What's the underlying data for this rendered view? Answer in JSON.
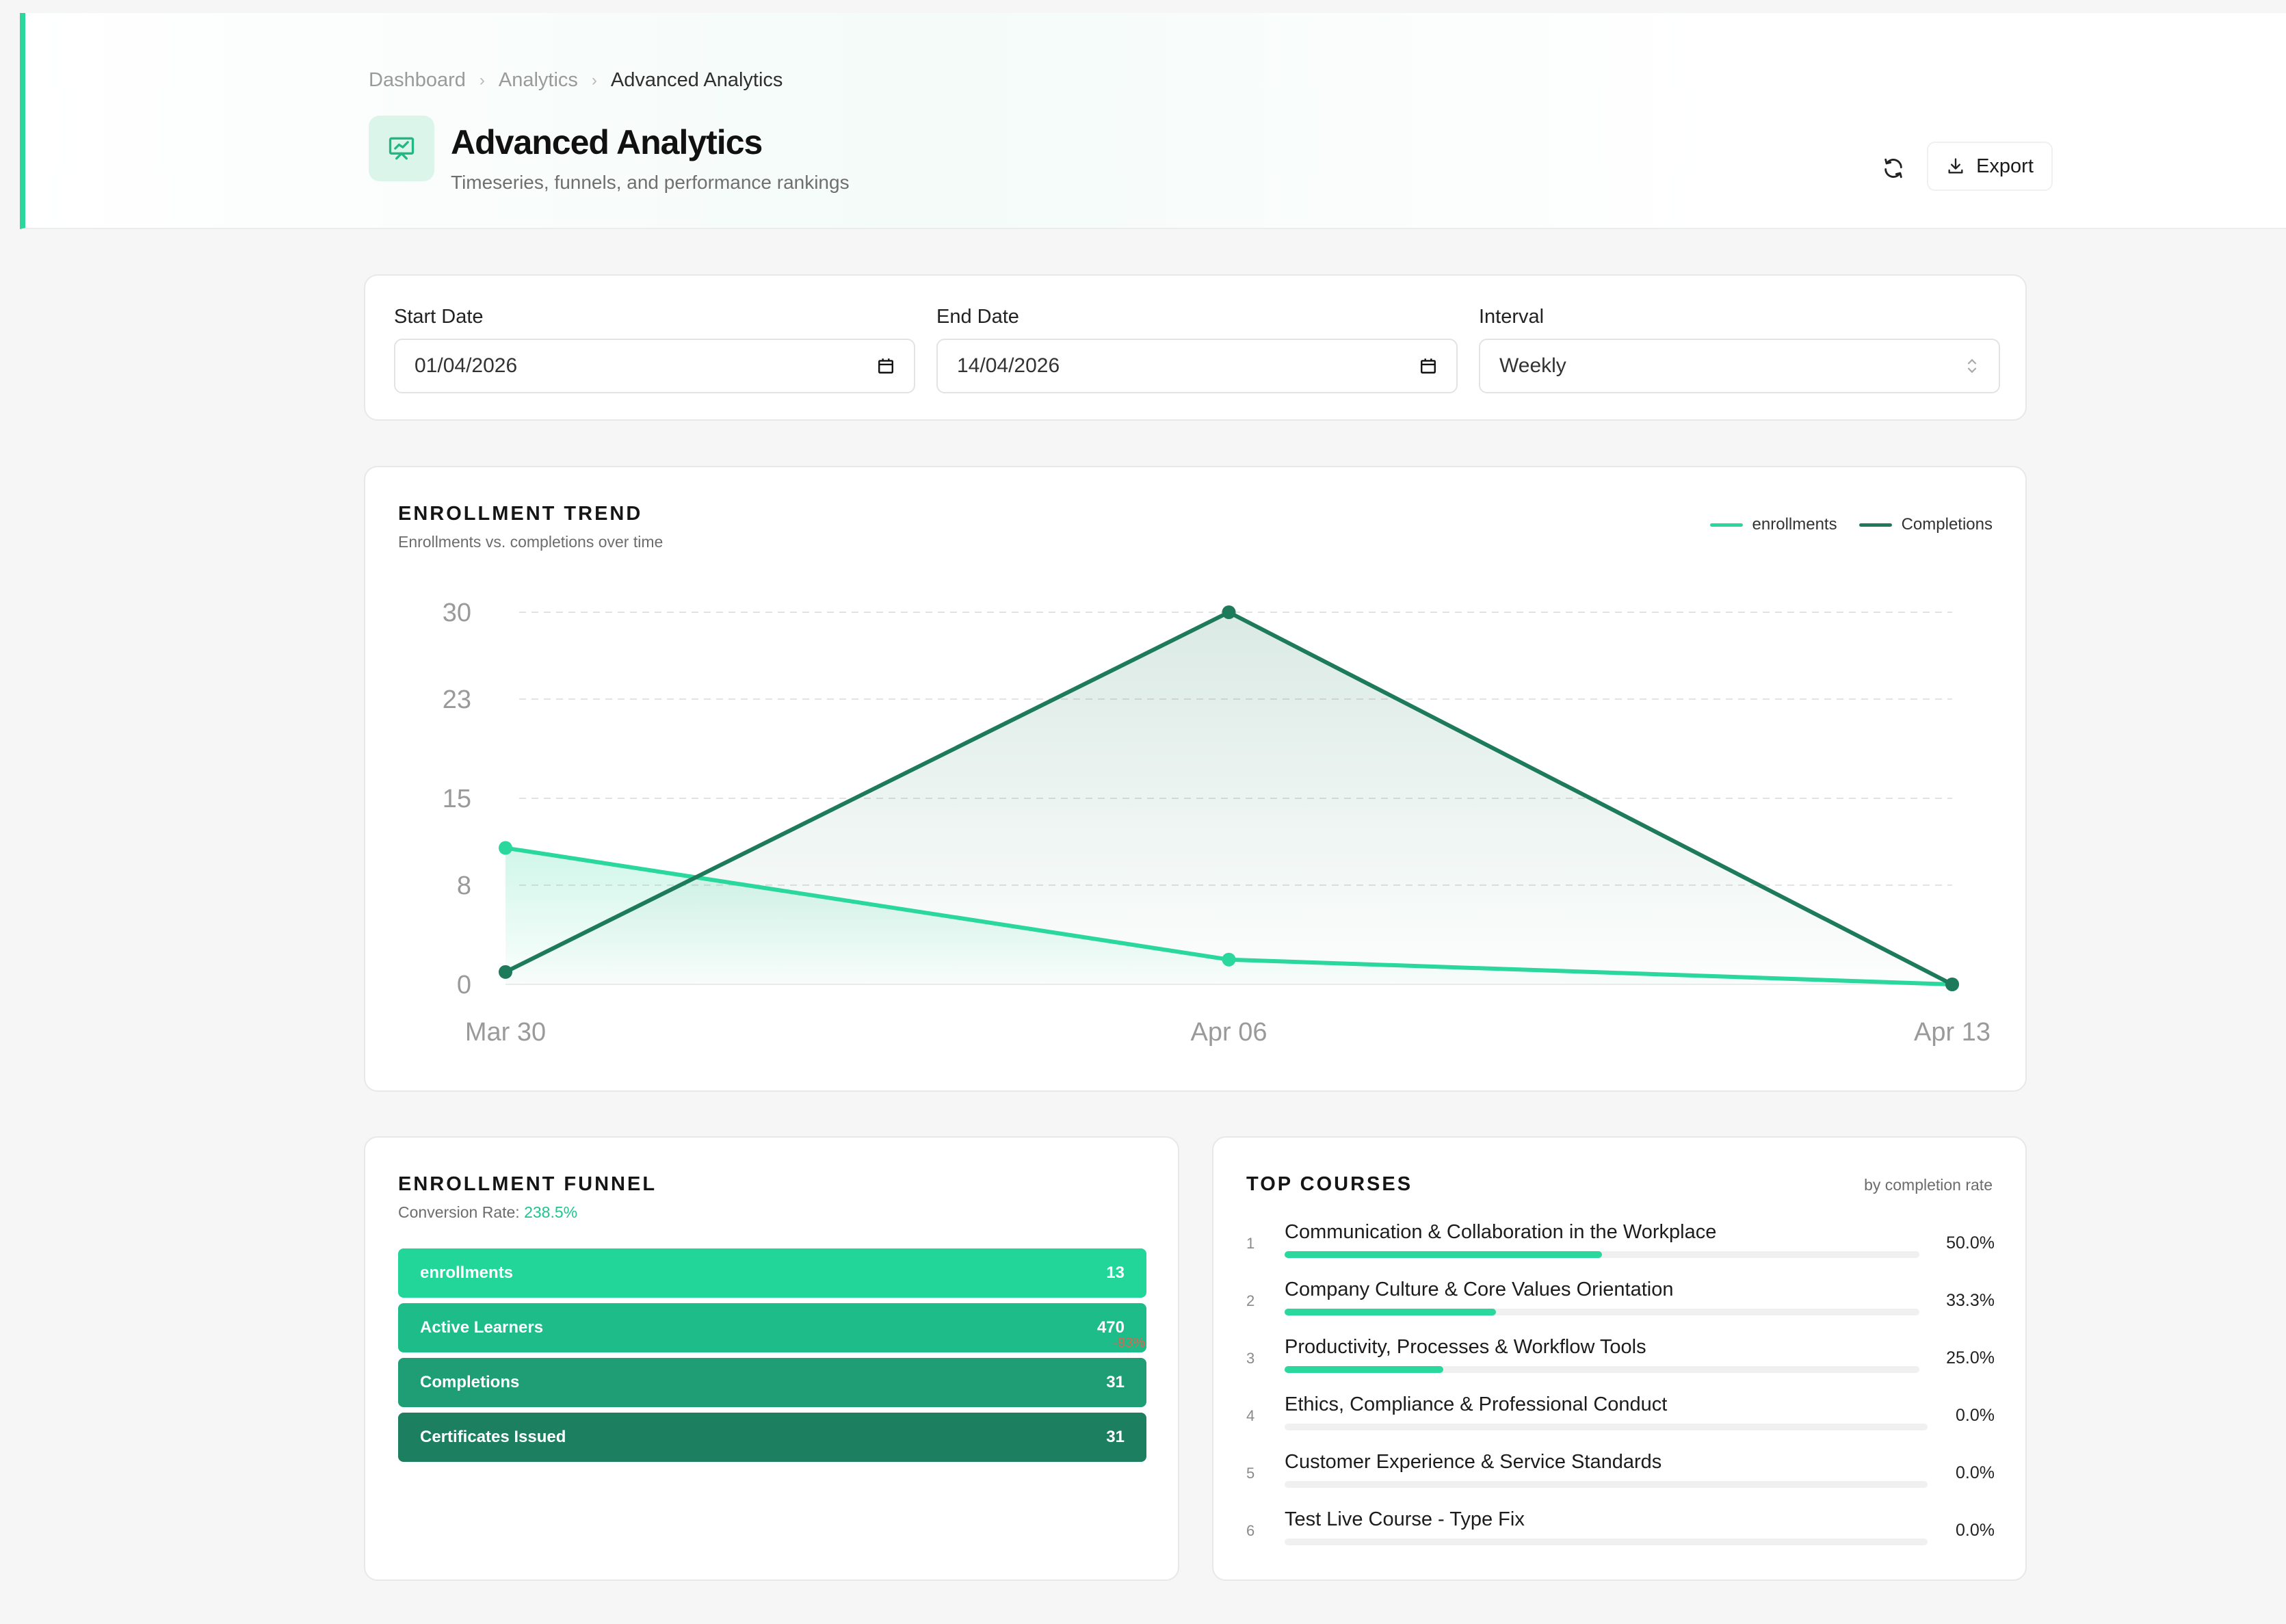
{
  "breadcrumb": {
    "items": [
      "Dashboard",
      "Analytics"
    ],
    "current": "Advanced Analytics"
  },
  "header": {
    "title": "Advanced Analytics",
    "subtitle": "Timeseries, funnels, and performance rankings",
    "export_label": "Export"
  },
  "filters": {
    "start_label": "Start Date",
    "start_value": "01/04/2026",
    "end_label": "End Date",
    "end_value": "14/04/2026",
    "interval_label": "Interval",
    "interval_value": "Weekly"
  },
  "trend": {
    "title": "ENROLLMENT TREND",
    "subtitle": "Enrollments vs. completions over time",
    "legend": [
      "enrollments",
      "Completions"
    ]
  },
  "chart_data": {
    "type": "area",
    "categories": [
      "Mar 30",
      "Apr 06",
      "Apr 13"
    ],
    "series": [
      {
        "name": "enrollments",
        "values": [
          11,
          2,
          0
        ],
        "color": "#2ad79c"
      },
      {
        "name": "Completions",
        "values": [
          1,
          30,
          0
        ],
        "color": "#1d7a5a"
      }
    ],
    "yticks": [
      "30",
      "23",
      "15",
      "8",
      "0"
    ],
    "ylim": [
      0,
      30
    ],
    "grid": true,
    "legend_position": "top-right"
  },
  "funnel": {
    "title": "ENROLLMENT FUNNEL",
    "conversion_label": "Conversion Rate:",
    "conversion_value": "238.5%",
    "drop_note": "-93%",
    "stages": [
      {
        "label": "enrollments",
        "value": "13",
        "color": "#22d699"
      },
      {
        "label": "Active Learners",
        "value": "470",
        "color": "#1ebc88"
      },
      {
        "label": "Completions",
        "value": "31",
        "color": "#1f9e75"
      },
      {
        "label": "Certificates Issued",
        "value": "31",
        "color": "#1b7f60"
      }
    ]
  },
  "top_courses": {
    "title": "TOP COURSES",
    "subtitle": "by completion rate",
    "items": [
      {
        "rank": "1",
        "name": "Communication & Collaboration in the Workplace",
        "pct": "50.0%",
        "rate": 0.5
      },
      {
        "rank": "2",
        "name": "Company Culture & Core Values Orientation",
        "pct": "33.3%",
        "rate": 0.333
      },
      {
        "rank": "3",
        "name": "Productivity, Processes & Workflow Tools",
        "pct": "25.0%",
        "rate": 0.25
      },
      {
        "rank": "4",
        "name": "Ethics, Compliance & Professional Conduct",
        "pct": "0.0%",
        "rate": 0
      },
      {
        "rank": "5",
        "name": "Customer Experience & Service Standards",
        "pct": "0.0%",
        "rate": 0
      },
      {
        "rank": "6",
        "name": "Test Live Course - Type Fix",
        "pct": "0.0%",
        "rate": 0
      }
    ]
  }
}
